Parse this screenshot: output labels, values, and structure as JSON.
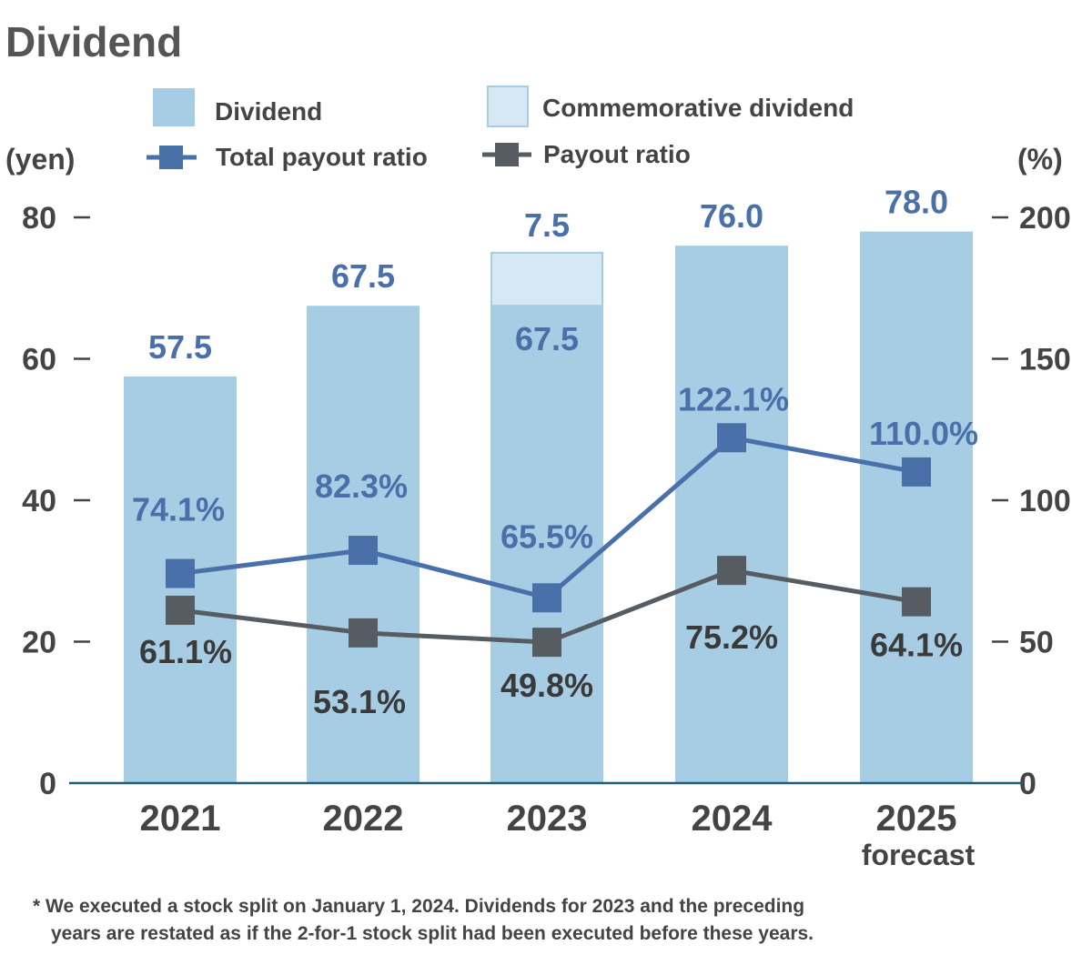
{
  "chart_data": {
    "type": "bar",
    "title": "Dividend",
    "categories": [
      "2021",
      "2022",
      "2023",
      "2024",
      "2025"
    ],
    "category_sublabels": [
      "",
      "",
      "",
      "",
      "forecast"
    ],
    "y_left": {
      "unit": "(yen)",
      "ylim": [
        0,
        80
      ],
      "ticks": [
        "0",
        "20",
        "40",
        "60",
        "80"
      ]
    },
    "y_right": {
      "unit": "(%)",
      "ylim": [
        0,
        200
      ],
      "ticks": [
        "0",
        "50",
        "100",
        "150",
        "200"
      ]
    },
    "series": [
      {
        "name": "Dividend",
        "kind": "bar",
        "axis": "left",
        "color": "#a6cde4",
        "values": [
          57.5,
          67.5,
          67.5,
          76.0,
          78.0
        ],
        "labels": [
          "57.5",
          "67.5",
          "67.5",
          "76.0",
          "78.0"
        ]
      },
      {
        "name": "Commemorative dividend",
        "kind": "bar-stacked",
        "axis": "left",
        "color": "#d6e8f3",
        "values": [
          0,
          0,
          7.5,
          0,
          0
        ],
        "labels": [
          "",
          "",
          "7.5",
          "",
          ""
        ]
      },
      {
        "name": "Total payout ratio",
        "kind": "line",
        "axis": "right",
        "color": "#4a70a9",
        "values": [
          74.1,
          82.3,
          65.5,
          122.1,
          110.0
        ],
        "labels": [
          "74.1%",
          "82.3%",
          "65.5%",
          "122.1%",
          "110.0%"
        ]
      },
      {
        "name": "Payout ratio",
        "kind": "line",
        "axis": "right",
        "color": "#565c62",
        "values": [
          61.1,
          53.1,
          49.8,
          75.2,
          64.1
        ],
        "labels": [
          "61.1%",
          "53.1%",
          "49.8%",
          "75.2%",
          "64.1%"
        ]
      }
    ],
    "legend_position": "top",
    "grid": false
  },
  "footnote": {
    "line1": "* We executed a stock split on January 1, 2024. Dividends for 2023 and the preceding",
    "line2": "years are restated as if the 2-for-1 stock split had been executed before these years."
  }
}
